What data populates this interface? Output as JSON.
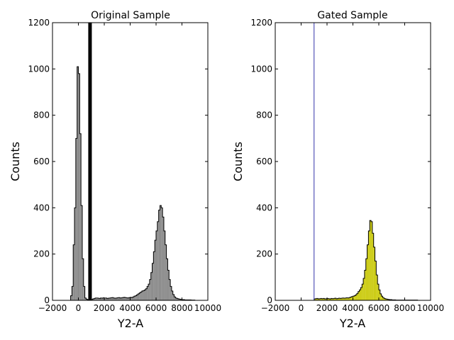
{
  "chart_data": [
    {
      "type": "bar",
      "panel": "left",
      "title": "Original Sample",
      "xlabel": "Y2-A",
      "ylabel": "Counts",
      "xlim": [
        -2000,
        10000
      ],
      "ylim": [
        0,
        1200
      ],
      "xticks": [
        -2000,
        0,
        2000,
        4000,
        6000,
        8000,
        10000
      ],
      "yticks": [
        0,
        200,
        400,
        600,
        800,
        1000,
        1200
      ],
      "xtick_labels": [
        "−2000",
        "0",
        "2000",
        "4000",
        "6000",
        "8000",
        "10000"
      ],
      "ytick_labels": [
        "0",
        "200",
        "400",
        "600",
        "800",
        "1000",
        "1200"
      ],
      "fill_color": "#8c8c8c",
      "edge_color": "#000000",
      "gate_x": 900,
      "gate_color": "#000000",
      "bin_edges": [
        -600,
        -500,
        -400,
        -300,
        -200,
        -100,
        0,
        100,
        200,
        300,
        400,
        500,
        600,
        700,
        800,
        900,
        1000,
        1100,
        1200,
        1300,
        1400,
        1500,
        1600,
        1700,
        1800,
        1900,
        2000,
        2100,
        2200,
        2300,
        2400,
        2500,
        2600,
        2700,
        2800,
        2900,
        3000,
        3100,
        3200,
        3300,
        3400,
        3500,
        3600,
        3700,
        3800,
        3900,
        4000,
        4100,
        4200,
        4300,
        4400,
        4500,
        4600,
        4700,
        4800,
        4900,
        5000,
        5100,
        5200,
        5300,
        5400,
        5500,
        5600,
        5700,
        5800,
        5900,
        6000,
        6100,
        6200,
        6300,
        6400,
        6500,
        6600,
        6700,
        6800,
        6900,
        7000,
        7100,
        7200,
        7300,
        7400,
        7500,
        7600,
        7700,
        7800,
        7900,
        8000,
        8100,
        8200,
        8300,
        8400,
        8500,
        8600,
        8700,
        8800,
        8900,
        9000
      ],
      "counts": [
        20,
        60,
        240,
        400,
        700,
        1010,
        980,
        720,
        410,
        180,
        60,
        10,
        5,
        3,
        2,
        2,
        4,
        6,
        8,
        10,
        10,
        9,
        8,
        10,
        9,
        11,
        10,
        10,
        8,
        9,
        10,
        11,
        12,
        10,
        9,
        10,
        11,
        12,
        10,
        11,
        12,
        13,
        12,
        11,
        10,
        12,
        13,
        12,
        15,
        18,
        20,
        24,
        28,
        32,
        36,
        40,
        42,
        45,
        50,
        60,
        70,
        90,
        120,
        160,
        210,
        260,
        300,
        340,
        390,
        410,
        400,
        360,
        300,
        240,
        180,
        130,
        90,
        60,
        40,
        25,
        15,
        10,
        8,
        6,
        5,
        4,
        3,
        3,
        2,
        2,
        2,
        2,
        2,
        1,
        1,
        1
      ]
    },
    {
      "type": "bar",
      "panel": "right",
      "title": "Gated Sample",
      "xlabel": "Y2-A",
      "ylabel": "Counts",
      "xlim": [
        -2000,
        10000
      ],
      "ylim": [
        0,
        1200
      ],
      "xticks": [
        -2000,
        0,
        2000,
        4000,
        6000,
        8000,
        10000
      ],
      "yticks": [
        0,
        200,
        400,
        600,
        800,
        1000,
        1200
      ],
      "xtick_labels": [
        "−2000",
        "0",
        "2000",
        "4000",
        "6000",
        "8000",
        "10000"
      ],
      "ytick_labels": [
        "0",
        "200",
        "400",
        "600",
        "800",
        "1000",
        "1200"
      ],
      "fill_color": "#cccc14",
      "edge_color": "#000000",
      "gate_x": 1000,
      "gate_color": "#3333aa",
      "bin_edges": [
        1000,
        1100,
        1200,
        1300,
        1400,
        1500,
        1600,
        1700,
        1800,
        1900,
        2000,
        2100,
        2200,
        2300,
        2400,
        2500,
        2600,
        2700,
        2800,
        2900,
        3000,
        3100,
        3200,
        3300,
        3400,
        3500,
        3600,
        3700,
        3800,
        3900,
        4000,
        4100,
        4200,
        4300,
        4400,
        4500,
        4600,
        4700,
        4800,
        4900,
        5000,
        5100,
        5200,
        5300,
        5400,
        5500,
        5600,
        5700,
        5800,
        5900,
        6000,
        6100,
        6200,
        6300,
        6400,
        6500,
        6600,
        6700,
        6800,
        6900,
        7000,
        7100,
        7200,
        7300,
        7400,
        7500,
        7600,
        7700,
        7800,
        7900,
        8000,
        8100,
        8200,
        8300,
        8400,
        8500,
        8600,
        8700,
        8800,
        8900,
        9000
      ],
      "counts": [
        6,
        7,
        8,
        6,
        7,
        8,
        7,
        8,
        6,
        7,
        8,
        7,
        6,
        8,
        7,
        8,
        9,
        7,
        8,
        9,
        8,
        9,
        10,
        9,
        10,
        11,
        10,
        12,
        14,
        16,
        18,
        20,
        24,
        30,
        38,
        45,
        55,
        70,
        95,
        130,
        180,
        240,
        300,
        345,
        340,
        290,
        230,
        170,
        110,
        70,
        45,
        28,
        18,
        12,
        8,
        6,
        5,
        4,
        3,
        3,
        2,
        2,
        2,
        1,
        1,
        1,
        1,
        1,
        1,
        1,
        1,
        1,
        1,
        1,
        1,
        1,
        1,
        1,
        1,
        1
      ]
    }
  ]
}
